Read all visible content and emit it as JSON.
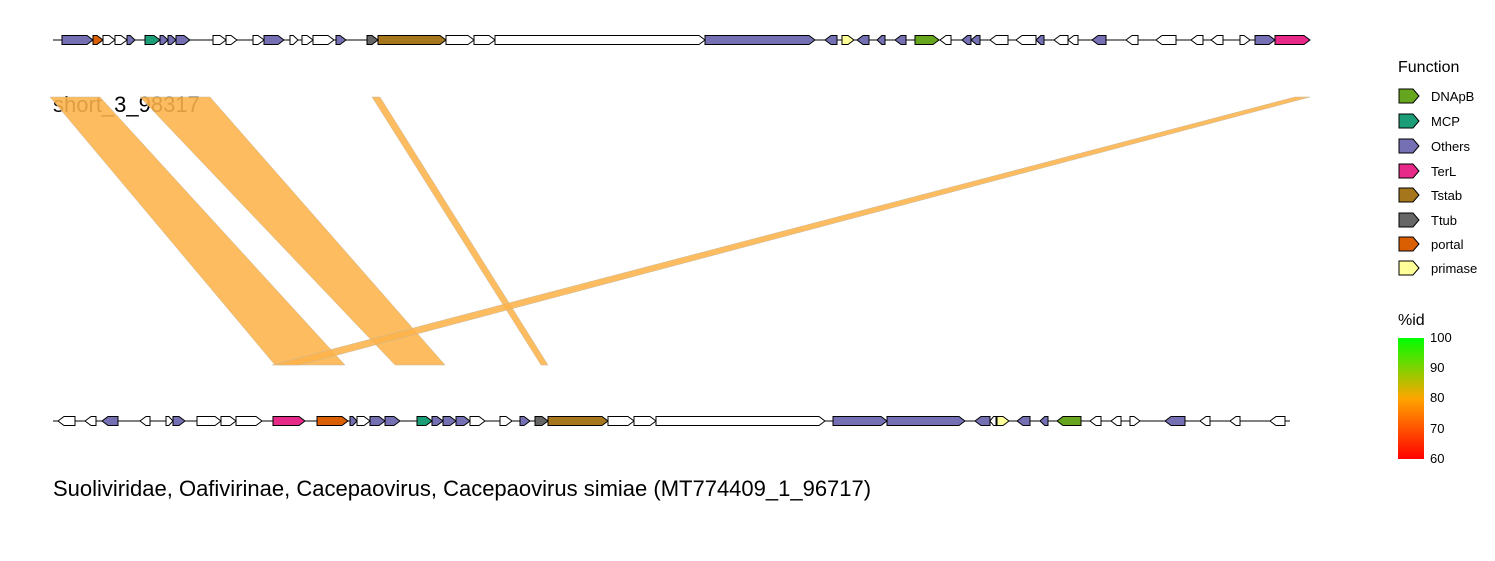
{
  "top_genome": {
    "label": "short_3_98317"
  },
  "bottom_genome": {
    "label": "Suoliviridae, Oafivirinae, Cacepaovirus, Cacepaovirus simiae (MT774409_1_96717)"
  },
  "legend": {
    "function_title": "Function",
    "items": [
      {
        "label": "DNApB",
        "color": "#66a61e"
      },
      {
        "label": "MCP",
        "color": "#1b9e77"
      },
      {
        "label": "Others",
        "color": "#7570b3"
      },
      {
        "label": "TerL",
        "color": "#e7298a"
      },
      {
        "label": "Tstab",
        "color": "#a6761d"
      },
      {
        "label": "Ttub",
        "color": "#666666"
      },
      {
        "label": "portal",
        "color": "#d95f02"
      },
      {
        "label": "primase",
        "color": "#ffff99"
      }
    ],
    "id_title": "%id",
    "id_ticks": [
      "100",
      "90",
      "80",
      "70",
      "60"
    ],
    "id_colors": {
      "high": "#00ff00",
      "mid": "#ffa500",
      "low": "#ff0000"
    }
  },
  "colors": {
    "unknown_gene": "#ffffff",
    "link_fill": "#fdb34a"
  },
  "chart_data": {
    "type": "genome_synteny",
    "link_identity_percent": 80,
    "top_genes": [
      {
        "f": "Others",
        "d": 1
      },
      {
        "f": "portal",
        "d": 1
      },
      {
        "f": "",
        "d": 1
      },
      {
        "f": "",
        "d": 1
      },
      {
        "f": "Others",
        "d": 1
      },
      {
        "f": "MCP",
        "d": 1
      },
      {
        "f": "Others",
        "d": 1
      },
      {
        "f": "Others",
        "d": 1
      },
      {
        "f": "Others",
        "d": 1
      },
      {
        "f": "",
        "d": 1
      },
      {
        "f": "",
        "d": 1
      },
      {
        "f": "",
        "d": 1
      },
      {
        "f": "Others",
        "d": 1
      },
      {
        "f": "",
        "d": 1
      },
      {
        "f": "",
        "d": 1
      },
      {
        "f": "",
        "d": 1
      },
      {
        "f": "Others",
        "d": 1
      },
      {
        "f": "Ttub",
        "d": 1
      },
      {
        "f": "Tstab",
        "d": 1
      },
      {
        "f": "",
        "d": 1
      },
      {
        "f": "",
        "d": 1
      },
      {
        "f": "",
        "d": 1
      },
      {
        "f": "Others",
        "d": 1
      },
      {
        "f": "Others",
        "d": -1
      },
      {
        "f": "primase",
        "d": 1
      },
      {
        "f": "Others",
        "d": -1
      },
      {
        "f": "Others",
        "d": -1
      },
      {
        "f": "DNApB",
        "d": 1
      },
      {
        "f": "Others",
        "d": -1
      },
      {
        "f": "",
        "d": -1
      },
      {
        "f": "Others",
        "d": -1
      },
      {
        "f": "Others",
        "d": -1
      },
      {
        "f": "",
        "d": -1
      },
      {
        "f": "",
        "d": -1
      },
      {
        "f": "Others",
        "d": -1
      },
      {
        "f": "",
        "d": -1
      },
      {
        "f": "",
        "d": -1
      },
      {
        "f": "Others",
        "d": -1
      },
      {
        "f": "",
        "d": -1
      },
      {
        "f": "",
        "d": -1
      },
      {
        "f": "",
        "d": -1
      },
      {
        "f": "",
        "d": -1
      },
      {
        "f": "",
        "d": 1
      },
      {
        "f": "Others",
        "d": 1
      },
      {
        "f": "TerL",
        "d": 1
      }
    ],
    "bottom_genes": [
      {
        "f": "",
        "d": -1
      },
      {
        "f": "",
        "d": -1
      },
      {
        "f": "Others",
        "d": -1
      },
      {
        "f": "",
        "d": -1
      },
      {
        "f": "",
        "d": 1
      },
      {
        "f": "Others",
        "d": 1
      },
      {
        "f": "",
        "d": 1
      },
      {
        "f": "",
        "d": 1
      },
      {
        "f": "",
        "d": 1
      },
      {
        "f": "TerL",
        "d": 1
      },
      {
        "f": "portal",
        "d": 1
      },
      {
        "f": "Others",
        "d": 1
      },
      {
        "f": "",
        "d": 1
      },
      {
        "f": "Others",
        "d": 1
      },
      {
        "f": "Others",
        "d": 1
      },
      {
        "f": "MCP",
        "d": 1
      },
      {
        "f": "Others",
        "d": 1
      },
      {
        "f": "Others",
        "d": 1
      },
      {
        "f": "Others",
        "d": 1
      },
      {
        "f": "",
        "d": 1
      },
      {
        "f": "",
        "d": 1
      },
      {
        "f": "Others",
        "d": 1
      },
      {
        "f": "Ttub",
        "d": 1
      },
      {
        "f": "Tstab",
        "d": 1
      },
      {
        "f": "",
        "d": 1
      },
      {
        "f": "",
        "d": 1
      },
      {
        "f": "",
        "d": 1
      },
      {
        "f": "Others",
        "d": 1
      },
      {
        "f": "Others",
        "d": 1
      },
      {
        "f": "Others",
        "d": -1
      },
      {
        "f": "",
        "d": -1
      },
      {
        "f": "primase",
        "d": 1
      },
      {
        "f": "Others",
        "d": -1
      },
      {
        "f": "Others",
        "d": -1
      },
      {
        "f": "DNApB",
        "d": -1
      },
      {
        "f": "",
        "d": -1
      },
      {
        "f": "",
        "d": -1
      },
      {
        "f": "",
        "d": 1
      },
      {
        "f": "Others",
        "d": -1
      },
      {
        "f": "",
        "d": -1
      },
      {
        "f": "",
        "d": -1
      },
      {
        "f": "",
        "d": -1
      }
    ]
  }
}
